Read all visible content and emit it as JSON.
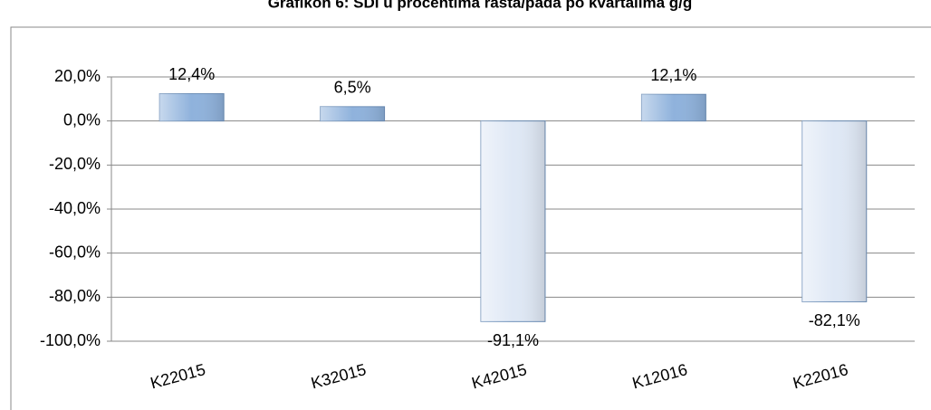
{
  "chart_data": {
    "type": "bar",
    "title": "Grafikon 6: SDI u procentima rasta/pada po kvartalima g/g",
    "categories": [
      "K22015",
      "K32015",
      "K42015",
      "K12016",
      "K22016"
    ],
    "values": [
      12.4,
      6.5,
      -91.1,
      12.1,
      -82.1
    ],
    "value_labels": [
      "12,4%",
      "6,5%",
      "-91,1%",
      "12,1%",
      "-82,1%"
    ],
    "colors": [
      "#8fb2dc",
      "#8fb2dc",
      "#dfe8f5",
      "#8fb2dc",
      "#dfe8f5"
    ],
    "ylim": [
      -100,
      20
    ],
    "yticks": [
      {
        "value": 20,
        "label": "20,0%"
      },
      {
        "value": 0,
        "label": "0,0%"
      },
      {
        "value": -20,
        "label": "-20,0%"
      },
      {
        "value": -40,
        "label": "-40,0%"
      },
      {
        "value": -60,
        "label": "-60,0%"
      },
      {
        "value": -80,
        "label": "-80,0%"
      },
      {
        "value": -100,
        "label": "-100,0%"
      }
    ],
    "grid": true
  }
}
